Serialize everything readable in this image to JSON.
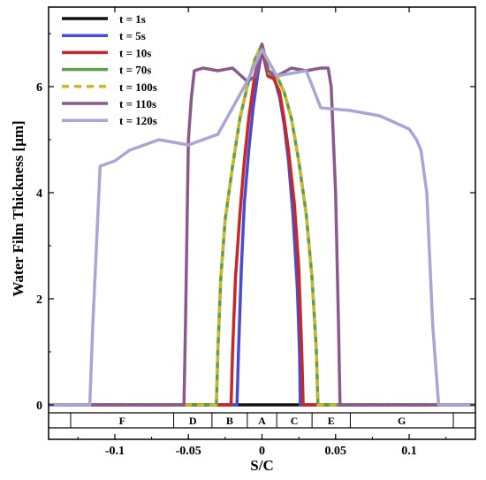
{
  "chart_data": {
    "type": "line",
    "xlabel": "S/C",
    "ylabel": "Water Film Thickness [μm]",
    "xlim": [
      -0.145,
      0.145
    ],
    "ylim": [
      -0.1,
      7.5
    ],
    "x_ticks": [
      -0.1,
      -0.05,
      0,
      0.05,
      0.1
    ],
    "x_tick_labels": [
      "-0.1",
      "-0.05",
      "0",
      "0.05",
      "0.1"
    ],
    "y_ticks": [
      0,
      2,
      4,
      6
    ],
    "y_tick_labels": [
      "0",
      "2",
      "4",
      "6"
    ],
    "legend_position": "top-left",
    "zones": [
      {
        "label": "F",
        "from": -0.13,
        "to": -0.06
      },
      {
        "label": "D",
        "from": -0.06,
        "to": -0.034
      },
      {
        "label": "B",
        "from": -0.034,
        "to": -0.01
      },
      {
        "label": "A",
        "from": -0.01,
        "to": 0.01
      },
      {
        "label": "C",
        "from": 0.01,
        "to": 0.034
      },
      {
        "label": "E",
        "from": 0.034,
        "to": 0.06
      },
      {
        "label": "G",
        "from": 0.06,
        "to": 0.13
      }
    ],
    "series": [
      {
        "name": "t = 1s",
        "color": "#111111",
        "dash": "",
        "x": [
          -0.145,
          0.145
        ],
        "y": [
          0,
          0
        ]
      },
      {
        "name": "t = 5s",
        "color": "#4a4bd0",
        "dash": "",
        "x": [
          -0.145,
          -0.017,
          -0.016,
          -0.014,
          -0.012,
          -0.009,
          -0.006,
          -0.003,
          0,
          0.004,
          0.008,
          0.012,
          0.015,
          0.018,
          0.021,
          0.024,
          0.0255,
          0.026,
          0.145
        ],
        "y": [
          0,
          0,
          1.0,
          2.6,
          3.8,
          4.8,
          5.6,
          6.2,
          6.7,
          6.3,
          6.2,
          5.8,
          5.3,
          4.6,
          3.6,
          2.2,
          1.0,
          0,
          0
        ]
      },
      {
        "name": "t = 10s",
        "color": "#c82828",
        "dash": "",
        "x": [
          -0.145,
          -0.021,
          -0.02,
          -0.018,
          -0.015,
          -0.012,
          -0.009,
          -0.005,
          -0.002,
          0,
          0.004,
          0.008,
          0.012,
          0.015,
          0.018,
          0.022,
          0.025,
          0.027,
          0.028,
          0.145
        ],
        "y": [
          0,
          0,
          1.0,
          2.4,
          3.6,
          4.6,
          5.4,
          6.2,
          6.5,
          6.7,
          6.2,
          6.15,
          5.9,
          5.4,
          4.8,
          3.8,
          2.6,
          1.0,
          0,
          0
        ]
      },
      {
        "name": "t = 70s",
        "color": "#5c9e4a",
        "dash": "",
        "x": [
          -0.145,
          -0.031,
          -0.03,
          -0.028,
          -0.025,
          -0.02,
          -0.015,
          -0.01,
          -0.005,
          0,
          0.005,
          0.01,
          0.015,
          0.02,
          0.025,
          0.03,
          0.034,
          0.037,
          0.038,
          0.145
        ],
        "y": [
          0,
          0,
          1.0,
          2.4,
          3.5,
          4.5,
          5.4,
          6.0,
          6.5,
          6.8,
          6.25,
          6.2,
          5.9,
          5.4,
          4.6,
          3.6,
          2.4,
          1.0,
          0,
          0
        ]
      },
      {
        "name": "t = 100s",
        "color": "#c9b82d",
        "dash": "8,6",
        "x": [
          -0.145,
          -0.031,
          -0.03,
          -0.028,
          -0.025,
          -0.02,
          -0.015,
          -0.01,
          -0.005,
          0,
          0.005,
          0.01,
          0.015,
          0.02,
          0.025,
          0.03,
          0.034,
          0.037,
          0.038,
          0.145
        ],
        "y": [
          0,
          0,
          1.0,
          2.4,
          3.5,
          4.5,
          5.4,
          6.0,
          6.5,
          6.8,
          6.25,
          6.2,
          5.9,
          5.4,
          4.6,
          3.6,
          2.4,
          1.0,
          0,
          0
        ]
      },
      {
        "name": "t = 110s",
        "color": "#8a5a8c",
        "dash": "",
        "x": [
          -0.145,
          -0.053,
          -0.052,
          -0.05,
          -0.048,
          -0.046,
          -0.04,
          -0.03,
          -0.02,
          -0.01,
          -0.004,
          0,
          0.004,
          0.01,
          0.02,
          0.03,
          0.04,
          0.045,
          0.047,
          0.05,
          0.052,
          0.053,
          0.145
        ],
        "y": [
          0,
          0,
          1.5,
          5.0,
          5.8,
          6.3,
          6.35,
          6.3,
          6.35,
          6.1,
          6.2,
          6.8,
          6.3,
          6.2,
          6.35,
          6.3,
          6.35,
          6.35,
          6.0,
          4.0,
          1.5,
          0,
          0
        ]
      },
      {
        "name": "t = 120s",
        "color": "#a9a6d6",
        "dash": "",
        "x": [
          -0.145,
          -0.117,
          -0.115,
          -0.11,
          -0.1,
          -0.09,
          -0.08,
          -0.07,
          -0.06,
          -0.05,
          -0.03,
          -0.02,
          -0.01,
          0,
          0.01,
          0.02,
          0.03,
          0.04,
          0.06,
          0.08,
          0.1,
          0.105,
          0.108,
          0.112,
          0.116,
          0.12,
          0.145
        ],
        "y": [
          0,
          0,
          1.5,
          4.5,
          4.6,
          4.8,
          4.9,
          5.0,
          4.95,
          4.9,
          5.1,
          5.6,
          6.1,
          6.7,
          6.2,
          6.25,
          6.3,
          5.6,
          5.55,
          5.45,
          5.2,
          5.0,
          4.8,
          4.0,
          1.5,
          0,
          0
        ]
      }
    ]
  }
}
